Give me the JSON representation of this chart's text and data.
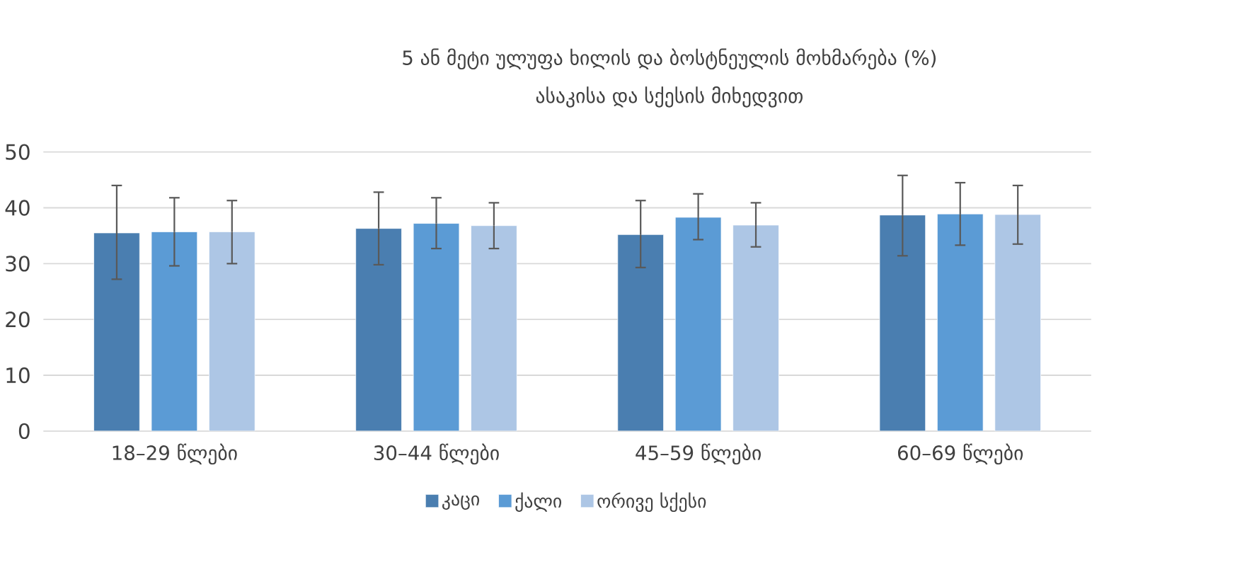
{
  "chart_data": {
    "type": "bar",
    "title": "5 ან მეტი ულუფა ხილის და ბოსტნეულის მოხმარება (%)",
    "subtitle": "ასაკისა და სქესის მიხედვით",
    "categories": [
      "18–29 წლები",
      "30–44 წლები",
      "45–59 წლები",
      "60–69 წლები"
    ],
    "series": [
      {
        "name": "კაცი",
        "color": "#4a7eb0",
        "values": [
          35.5,
          36.3,
          35.2,
          38.7
        ],
        "errors": [
          [
            27.2,
            44.0
          ],
          [
            29.8,
            42.8
          ],
          [
            29.3,
            41.3
          ],
          [
            31.4,
            45.8
          ]
        ]
      },
      {
        "name": "ქალი",
        "color": "#5b9bd5",
        "values": [
          35.7,
          37.2,
          38.3,
          38.9
        ],
        "errors": [
          [
            29.6,
            41.8
          ],
          [
            32.7,
            41.8
          ],
          [
            34.3,
            42.5
          ],
          [
            33.3,
            44.5
          ]
        ]
      },
      {
        "name": "ორივე სქესი",
        "color": "#adc6e5",
        "values": [
          35.7,
          36.8,
          36.9,
          38.8
        ],
        "errors": [
          [
            30.0,
            41.3
          ],
          [
            32.7,
            40.9
          ],
          [
            33.0,
            40.9
          ],
          [
            33.5,
            44.0
          ]
        ]
      }
    ],
    "ylim": [
      0,
      50
    ],
    "yticks": [
      0,
      10,
      20,
      30,
      40,
      50
    ],
    "grid": "y",
    "legend": "bottom"
  }
}
